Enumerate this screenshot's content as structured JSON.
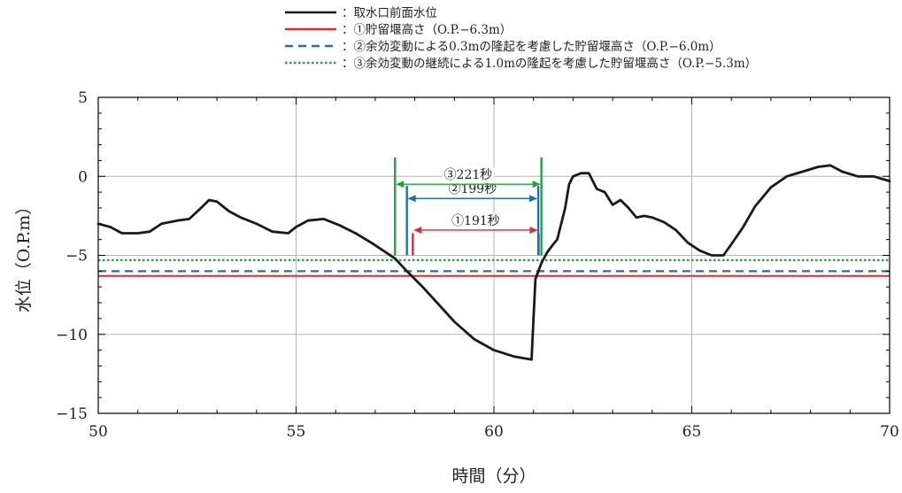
{
  "chart_data": {
    "type": "line",
    "xlabel": "時間（分）",
    "ylabel": "水位（O.P.m）",
    "xlim": [
      50,
      70
    ],
    "ylim": [
      -15,
      5
    ],
    "x_ticks": [
      "50",
      "55",
      "60",
      "65",
      "70"
    ],
    "y_ticks": [
      "5",
      "0",
      "−5",
      "−10",
      "−15"
    ],
    "grid": true,
    "legend_placement": "top",
    "legend": [
      {
        "label": "：取水口前面水位",
        "color": "#1a1a1a",
        "style": "solid"
      },
      {
        "label": "：①貯留堰高さ（O.P.−6.3m）",
        "color": "#e0282e",
        "style": "solid"
      },
      {
        "label": "：②余効変動による0.3mの隆起を考慮した貯留堰高さ（O.P.−6.0m）",
        "color": "#1f6fb3",
        "style": "dashed"
      },
      {
        "label": "：③余効変動の継続による1.0mの隆起を考慮した貯留堰高さ（O.P.−5.3m）",
        "color": "#22a040",
        "style": "dotted"
      }
    ],
    "series": [
      {
        "name": "取水口前面水位",
        "color": "#1a1a1a",
        "x": [
          50.0,
          50.3,
          50.6,
          51.0,
          51.3,
          51.6,
          52.0,
          52.3,
          52.6,
          52.8,
          53.0,
          53.3,
          53.6,
          54.0,
          54.4,
          54.8,
          55.0,
          55.3,
          55.7,
          56.1,
          56.5,
          56.9,
          57.2,
          57.5,
          57.8,
          58.2,
          58.6,
          59.0,
          59.5,
          60.0,
          60.5,
          60.95,
          61.0,
          61.05,
          61.2,
          61.35,
          61.5,
          61.6,
          61.7,
          61.8,
          61.9,
          62.0,
          62.2,
          62.4,
          62.6,
          62.8,
          63.0,
          63.2,
          63.4,
          63.6,
          63.8,
          64.0,
          64.3,
          64.6,
          64.9,
          65.2,
          65.5,
          65.8,
          66.0,
          66.3,
          66.6,
          67.0,
          67.4,
          67.8,
          68.2,
          68.5,
          68.8,
          69.2,
          69.6,
          70.0
        ],
        "y": [
          -3.0,
          -3.2,
          -3.6,
          -3.6,
          -3.5,
          -3.0,
          -2.8,
          -2.7,
          -2.0,
          -1.5,
          -1.6,
          -2.2,
          -2.6,
          -3.0,
          -3.5,
          -3.6,
          -3.2,
          -2.8,
          -2.7,
          -3.1,
          -3.6,
          -4.2,
          -4.7,
          -5.2,
          -6.0,
          -7.0,
          -8.1,
          -9.2,
          -10.3,
          -11.0,
          -11.4,
          -11.6,
          -9.0,
          -6.5,
          -5.5,
          -4.8,
          -4.3,
          -4.0,
          -3.0,
          -2.0,
          -0.5,
          0.0,
          0.2,
          0.2,
          -0.8,
          -1.0,
          -1.8,
          -1.5,
          -2.0,
          -2.6,
          -2.5,
          -2.6,
          -2.9,
          -3.4,
          -4.2,
          -4.7,
          -5.0,
          -5.0,
          -4.3,
          -3.2,
          -1.9,
          -0.7,
          0.0,
          0.3,
          0.6,
          0.7,
          0.3,
          0.0,
          0.0,
          -0.3
        ]
      },
      {
        "name": "①貯留堰高さ",
        "color": "#e0282e",
        "style": "solid",
        "y_const": -6.3
      },
      {
        "name": "②余効変動による0.3mの隆起を考慮した貯留堰高さ",
        "color": "#1f6fb3",
        "style": "dashed",
        "y_const": -6.0
      },
      {
        "name": "③余効変動の継続による1.0mの隆起を考慮した貯留堰高さ",
        "color": "#22a040",
        "style": "dotted",
        "y_const": -5.3
      }
    ],
    "annotations": [
      {
        "label": "①191秒",
        "color": "#e0282e",
        "x_start": 57.95,
        "x_end": 61.13,
        "y_arrow": -3.4,
        "y_top": -3.6,
        "y_bottom": -5.0
      },
      {
        "label": "②199秒",
        "color": "#1f6fb3",
        "x_start": 57.8,
        "x_end": 61.12,
        "y_arrow": -1.4,
        "y_top": -0.6,
        "y_bottom": -5.0
      },
      {
        "label": "③221秒",
        "color": "#22a040",
        "x_start": 57.5,
        "x_end": 61.2,
        "y_arrow": -0.5,
        "y_top": 1.2,
        "y_bottom": -5.0
      }
    ]
  }
}
